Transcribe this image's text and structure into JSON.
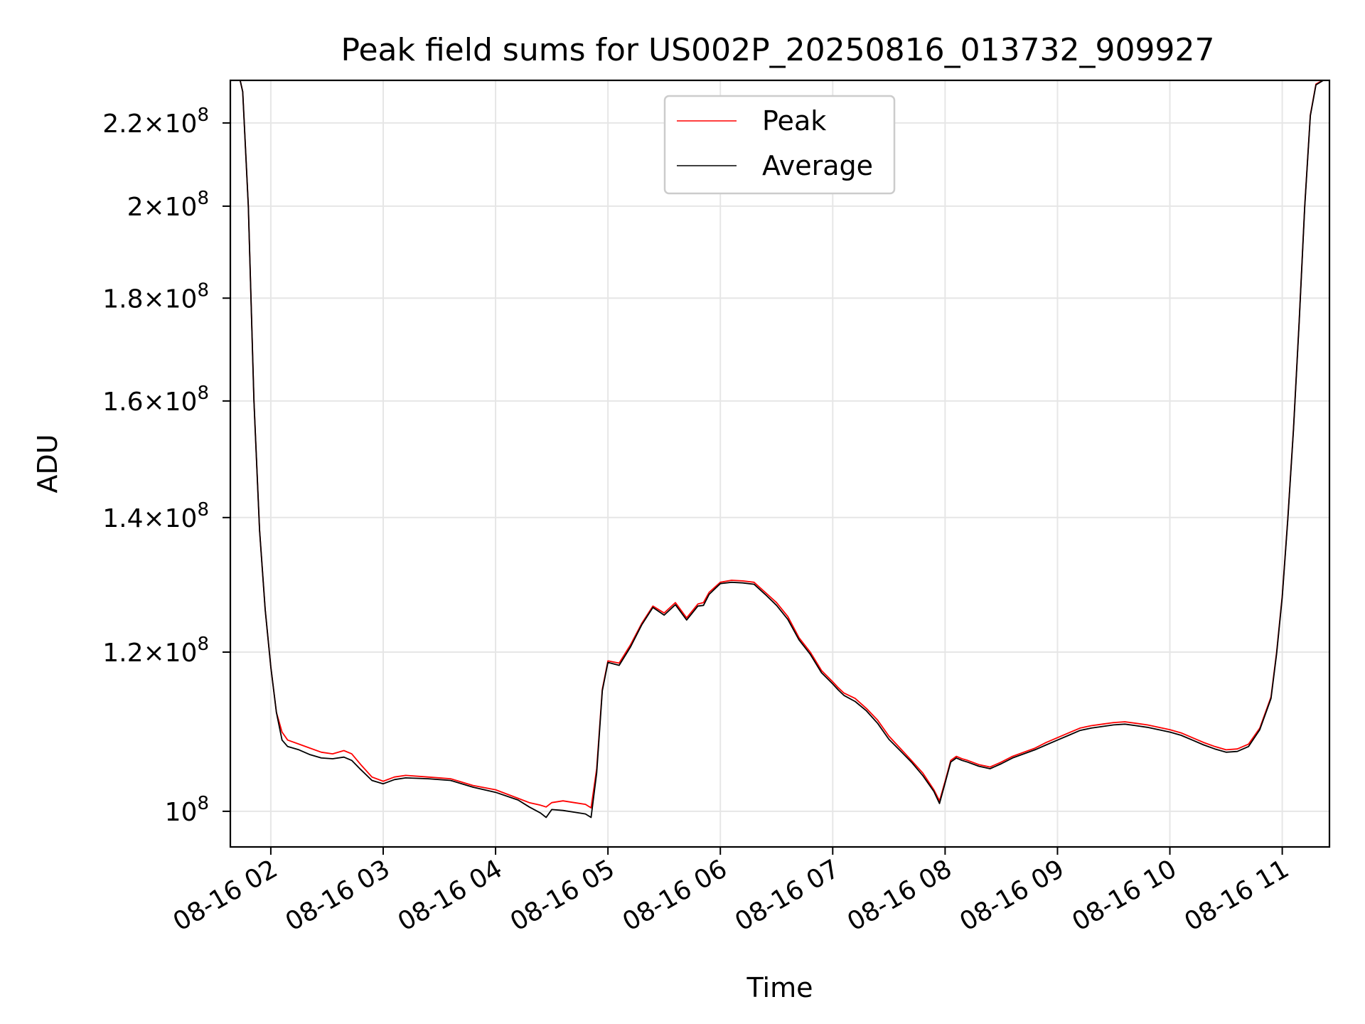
{
  "chart_data": {
    "type": "line",
    "title": "Peak field sums for US002P_20250816_013732_909927",
    "xlabel": "Time",
    "ylabel": "ADU",
    "yscale": "log",
    "grid": true,
    "legend_placement": "upper center",
    "x_tick_labels": [
      "08-16 02",
      "08-16 03",
      "08-16 04",
      "08-16 05",
      "08-16 06",
      "08-16 07",
      "08-16 08",
      "08-16 09",
      "08-16 10",
      "08-16 11"
    ],
    "x_ticks_hours": [
      2,
      3,
      4,
      5,
      6,
      7,
      8,
      9,
      10,
      11
    ],
    "xlim_hours": [
      1.64,
      11.42
    ],
    "ylim": [
      96000000,
      231000000
    ],
    "y_ticks": [
      {
        "value": 100000000,
        "mantissa": "",
        "exp": "8"
      },
      {
        "value": 120000000,
        "mantissa": "1.2",
        "exp": "8"
      },
      {
        "value": 140000000,
        "mantissa": "1.4",
        "exp": "8"
      },
      {
        "value": 160000000,
        "mantissa": "1.6",
        "exp": "8"
      },
      {
        "value": 180000000,
        "mantissa": "1.8",
        "exp": "8"
      },
      {
        "value": 200000000,
        "mantissa": "2",
        "exp": "8"
      },
      {
        "value": 220000000,
        "mantissa": "2.2",
        "exp": "8"
      }
    ],
    "series": [
      {
        "name": "Peak",
        "color": "#ff0000"
      },
      {
        "name": "Average",
        "color": "#000000"
      }
    ],
    "x_hours": [
      1.64,
      1.72,
      1.75,
      1.8,
      1.85,
      1.9,
      1.95,
      2.0,
      2.05,
      2.1,
      2.15,
      2.25,
      2.35,
      2.45,
      2.55,
      2.65,
      2.72,
      2.8,
      2.9,
      3.0,
      3.1,
      3.2,
      3.4,
      3.6,
      3.8,
      4.0,
      4.2,
      4.3,
      4.4,
      4.45,
      4.5,
      4.6,
      4.7,
      4.8,
      4.85,
      4.9,
      4.95,
      5.0,
      5.1,
      5.2,
      5.3,
      5.4,
      5.5,
      5.6,
      5.7,
      5.8,
      5.85,
      5.9,
      6.0,
      6.1,
      6.2,
      6.3,
      6.4,
      6.5,
      6.6,
      6.7,
      6.8,
      6.9,
      7.0,
      7.05,
      7.1,
      7.2,
      7.3,
      7.4,
      7.5,
      7.6,
      7.7,
      7.8,
      7.9,
      7.95,
      8.0,
      8.05,
      8.1,
      8.15,
      8.2,
      8.3,
      8.4,
      8.5,
      8.6,
      8.7,
      8.8,
      8.9,
      9.0,
      9.1,
      9.2,
      9.3,
      9.4,
      9.5,
      9.6,
      9.7,
      9.8,
      9.9,
      10.0,
      10.1,
      10.2,
      10.3,
      10.4,
      10.5,
      10.6,
      10.7,
      10.8,
      10.9,
      10.95,
      11.0,
      11.05,
      11.1,
      11.15,
      11.2,
      11.25,
      11.3,
      11.42
    ],
    "peak_values": [
      232000000,
      232000000,
      228000000,
      200000000,
      160000000,
      138000000,
      126000000,
      118000000,
      112000000,
      109500000,
      108500000,
      108000000,
      107500000,
      107000000,
      106800000,
      107200000,
      106800000,
      105500000,
      104000000,
      103500000,
      104000000,
      104200000,
      104000000,
      103800000,
      103000000,
      102500000,
      101500000,
      101000000,
      100700000,
      100500000,
      101000000,
      101200000,
      101000000,
      100800000,
      100400000,
      105000000,
      115000000,
      118800000,
      118500000,
      121000000,
      124000000,
      126500000,
      125500000,
      127000000,
      124800000,
      126800000,
      127000000,
      128500000,
      130000000,
      130300000,
      130200000,
      130000000,
      128500000,
      127000000,
      125000000,
      122000000,
      120000000,
      117500000,
      116000000,
      115200000,
      114500000,
      113800000,
      112500000,
      111000000,
      109000000,
      107500000,
      106000000,
      104500000,
      102500000,
      101200000,
      103500000,
      106000000,
      106500000,
      106200000,
      106000000,
      105500000,
      105200000,
      105800000,
      106500000,
      107000000,
      107500000,
      108200000,
      108800000,
      109400000,
      110000000,
      110300000,
      110500000,
      110700000,
      110800000,
      110600000,
      110400000,
      110100000,
      109800000,
      109400000,
      108800000,
      108200000,
      107700000,
      107300000,
      107400000,
      108000000,
      110000000,
      114000000,
      120000000,
      128000000,
      140000000,
      155000000,
      175000000,
      200000000,
      222000000,
      230000000,
      232000000
    ],
    "average_values": [
      232000000,
      232000000,
      228000000,
      200000000,
      160000000,
      138000000,
      126000000,
      118000000,
      112000000,
      108500000,
      107700000,
      107300000,
      106700000,
      106300000,
      106200000,
      106400000,
      106000000,
      104900000,
      103600000,
      103200000,
      103700000,
      103900000,
      103800000,
      103600000,
      102800000,
      102200000,
      101300000,
      100500000,
      99800000,
      99300000,
      100200000,
      100100000,
      99900000,
      99700000,
      99300000,
      104500000,
      114800000,
      118600000,
      118200000,
      120700000,
      123800000,
      126300000,
      125200000,
      126700000,
      124500000,
      126500000,
      126600000,
      128200000,
      129800000,
      130000000,
      129900000,
      129700000,
      128200000,
      126600000,
      124600000,
      121700000,
      119700000,
      117200000,
      115700000,
      114900000,
      114200000,
      113400000,
      112200000,
      110600000,
      108600000,
      107200000,
      105800000,
      104200000,
      102300000,
      100900000,
      103300000,
      105800000,
      106300000,
      106000000,
      105800000,
      105300000,
      105000000,
      105600000,
      106300000,
      106800000,
      107300000,
      107900000,
      108500000,
      109100000,
      109700000,
      110000000,
      110200000,
      110400000,
      110500000,
      110300000,
      110100000,
      109800000,
      109500000,
      109100000,
      108500000,
      107900000,
      107400000,
      107000000,
      107100000,
      107700000,
      109800000,
      113800000,
      119800000,
      127800000,
      139800000,
      154800000,
      174800000,
      199800000,
      221800000,
      229800000,
      232000000
    ]
  }
}
